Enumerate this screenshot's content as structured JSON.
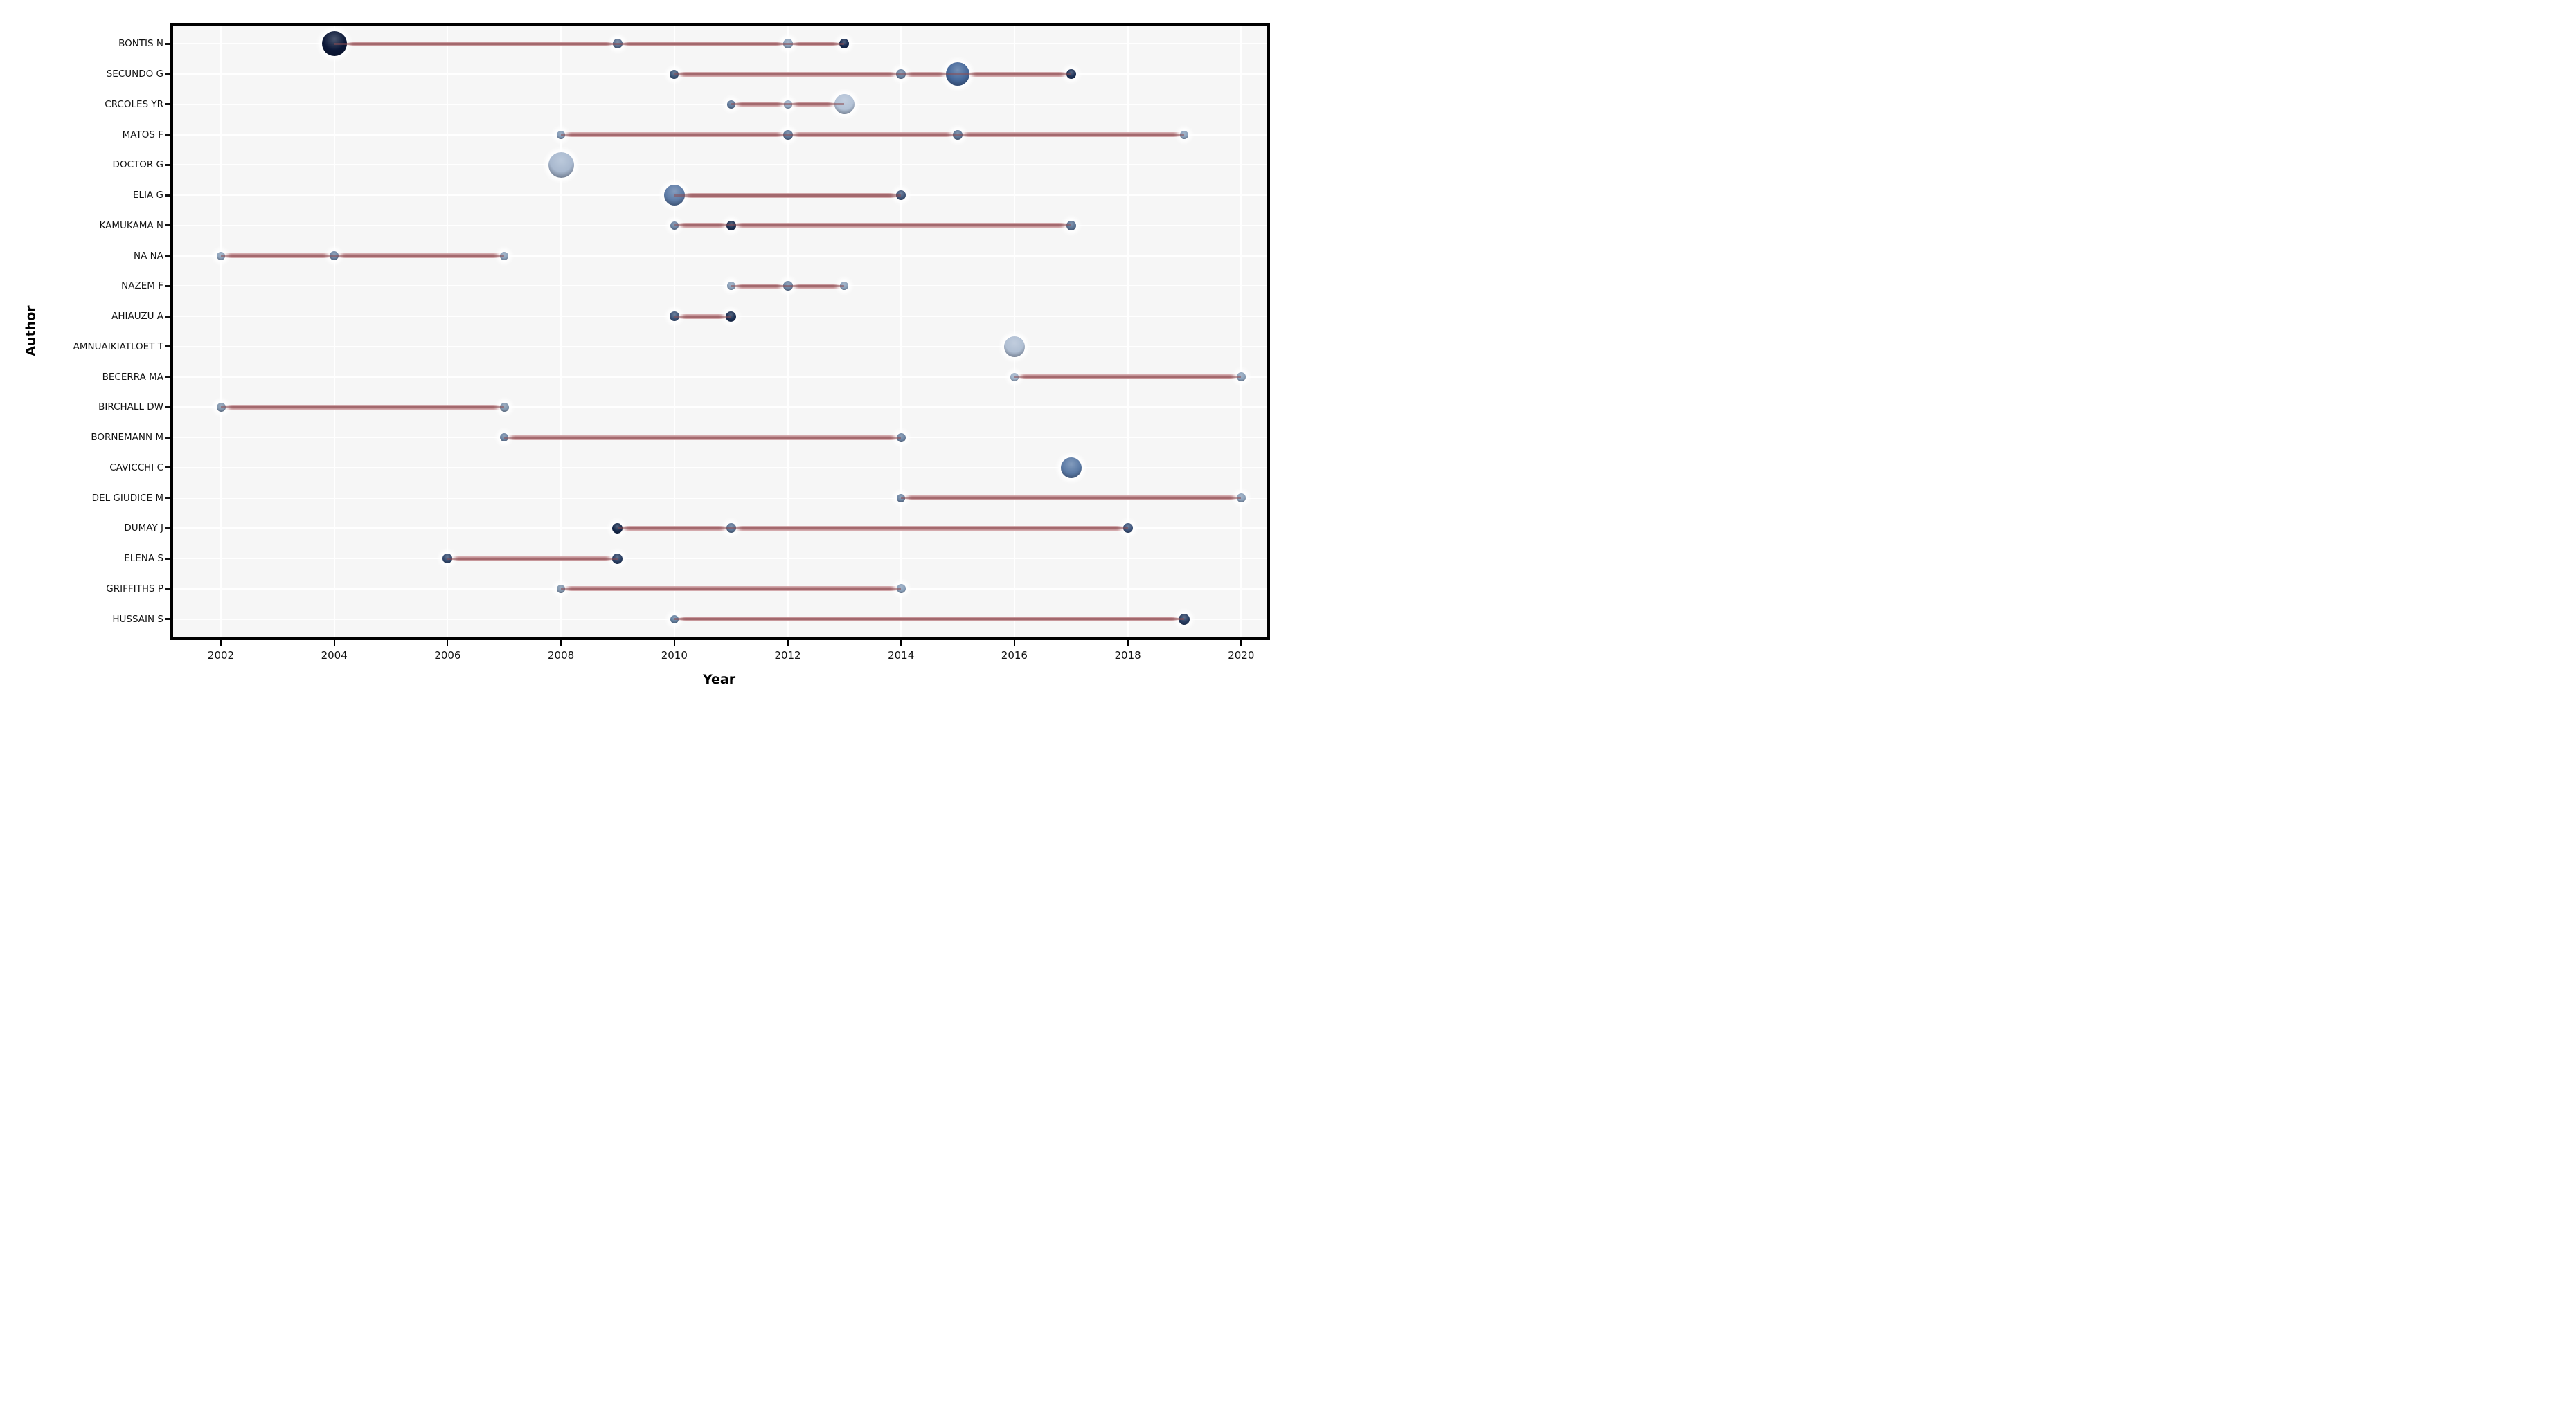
{
  "chart_data": {
    "type": "scatter",
    "variant": "authors-production-over-time-dot-timeline",
    "title": "",
    "xlabel": "Year",
    "ylabel": "Author",
    "x_ticks": [
      2002,
      2004,
      2006,
      2008,
      2010,
      2012,
      2014,
      2016,
      2018,
      2020
    ],
    "x_range": [
      2001.15,
      2020.5
    ],
    "grid": true,
    "legend_position": "none",
    "colors": {
      "panel_background": "#f6f6f6",
      "panel_border": "#000000",
      "gridline": "#ffffff",
      "line_ribbon": "#c08a8e",
      "line_ribbon_edge": "#d4a7aa",
      "line_core": "#9e5f63",
      "tick_text": "#111111",
      "point_dark": "#0c1838",
      "point_light": "#b3c2d6"
    },
    "authors": [
      {
        "name": "BONTIS N",
        "line": [
          2004,
          2013
        ],
        "points": [
          {
            "year": 2004,
            "r": 18,
            "color": "#0c1838"
          },
          {
            "year": 2009,
            "r": 7,
            "color": "#5a6f8e"
          },
          {
            "year": 2012,
            "r": 7,
            "color": "#8ba0b9"
          },
          {
            "year": 2013,
            "r": 7,
            "color": "#16294f"
          }
        ]
      },
      {
        "name": "SECUNDO G",
        "line": [
          2010,
          2017
        ],
        "points": [
          {
            "year": 2010,
            "r": 6.5,
            "color": "#3d5678"
          },
          {
            "year": 2014,
            "r": 7,
            "color": "#6d84a2"
          },
          {
            "year": 2015,
            "r": 17,
            "color": "#46689a"
          },
          {
            "year": 2017,
            "r": 7,
            "color": "#1d3156"
          }
        ]
      },
      {
        "name": "CRCOLES YR",
        "line": [
          2011,
          2013
        ],
        "points": [
          {
            "year": 2011,
            "r": 6,
            "color": "#5f7899"
          },
          {
            "year": 2012,
            "r": 6,
            "color": "#94a9c2"
          },
          {
            "year": 2013,
            "r": 14.5,
            "color": "#b3c2d6"
          }
        ]
      },
      {
        "name": "MATOS F",
        "line": [
          2008,
          2019
        ],
        "points": [
          {
            "year": 2008,
            "r": 6,
            "color": "#8198b4"
          },
          {
            "year": 2012,
            "r": 7,
            "color": "#5c7494"
          },
          {
            "year": 2015,
            "r": 7,
            "color": "#5c7494"
          },
          {
            "year": 2019,
            "r": 6,
            "color": "#8aa0ba"
          }
        ]
      },
      {
        "name": "DOCTOR G",
        "line": null,
        "points": [
          {
            "year": 2008,
            "r": 18.5,
            "color": "#a9b9cf"
          }
        ]
      },
      {
        "name": "ELIA G",
        "line": [
          2010,
          2014
        ],
        "points": [
          {
            "year": 2010,
            "r": 15,
            "color": "#5d7ba6"
          },
          {
            "year": 2014,
            "r": 7,
            "color": "#41577b"
          }
        ]
      },
      {
        "name": "KAMUKAMA N",
        "line": [
          2010,
          2017
        ],
        "points": [
          {
            "year": 2010,
            "r": 6,
            "color": "#6b82a1"
          },
          {
            "year": 2011,
            "r": 7,
            "color": "#1c2f52"
          },
          {
            "year": 2017,
            "r": 7,
            "color": "#5c7494"
          }
        ]
      },
      {
        "name": "NA NA",
        "line": [
          2002,
          2007
        ],
        "points": [
          {
            "year": 2002,
            "r": 6,
            "color": "#8ba0b9"
          },
          {
            "year": 2004,
            "r": 6.5,
            "color": "#6d84a2"
          },
          {
            "year": 2007,
            "r": 6,
            "color": "#8ba0b9"
          }
        ]
      },
      {
        "name": "NAZEM F",
        "line": [
          2011,
          2013
        ],
        "points": [
          {
            "year": 2011,
            "r": 6,
            "color": "#8ba0b9"
          },
          {
            "year": 2012,
            "r": 7,
            "color": "#6d84a2"
          },
          {
            "year": 2013,
            "r": 6,
            "color": "#8ba0b9"
          }
        ]
      },
      {
        "name": "AHIAUZU A",
        "line": [
          2010,
          2011
        ],
        "points": [
          {
            "year": 2010,
            "r": 7,
            "color": "#3c5377"
          },
          {
            "year": 2011,
            "r": 7.5,
            "color": "#1c2f52"
          }
        ]
      },
      {
        "name": "AMNUAIKIATLOET T",
        "line": null,
        "points": [
          {
            "year": 2016,
            "r": 15,
            "color": "#b0bfd3"
          }
        ]
      },
      {
        "name": "BECERRA MA",
        "line": [
          2016,
          2020
        ],
        "points": [
          {
            "year": 2016,
            "r": 6,
            "color": "#9db0c6"
          },
          {
            "year": 2020,
            "r": 6.5,
            "color": "#8ba0b9"
          }
        ]
      },
      {
        "name": "BIRCHALL DW",
        "line": [
          2002,
          2007
        ],
        "points": [
          {
            "year": 2002,
            "r": 6.5,
            "color": "#8296ad"
          },
          {
            "year": 2007,
            "r": 6.5,
            "color": "#8296ad"
          }
        ]
      },
      {
        "name": "BORNEMANN M",
        "line": [
          2007,
          2014
        ],
        "points": [
          {
            "year": 2007,
            "r": 6,
            "color": "#6d84a2"
          },
          {
            "year": 2014,
            "r": 6.5,
            "color": "#6d84a2"
          }
        ]
      },
      {
        "name": "CAVICCHI C",
        "line": null,
        "points": [
          {
            "year": 2017,
            "r": 15,
            "color": "#5b7aa5"
          }
        ]
      },
      {
        "name": "DEL GIUDICE M",
        "line": [
          2014,
          2020
        ],
        "points": [
          {
            "year": 2014,
            "r": 6,
            "color": "#6d84a2"
          },
          {
            "year": 2020,
            "r": 6.5,
            "color": "#8ba0b9"
          }
        ]
      },
      {
        "name": "DUMAY J",
        "line": [
          2009,
          2018
        ],
        "points": [
          {
            "year": 2009,
            "r": 7.5,
            "color": "#15284a"
          },
          {
            "year": 2011,
            "r": 7,
            "color": "#5c7494"
          },
          {
            "year": 2018,
            "r": 7,
            "color": "#3c537a"
          }
        ]
      },
      {
        "name": "ELENA S",
        "line": [
          2006,
          2009
        ],
        "points": [
          {
            "year": 2006,
            "r": 7,
            "color": "#33496e"
          },
          {
            "year": 2009,
            "r": 7.5,
            "color": "#2a3f63"
          }
        ]
      },
      {
        "name": "GRIFFITHS P",
        "line": [
          2008,
          2014
        ],
        "points": [
          {
            "year": 2008,
            "r": 6,
            "color": "#8296ad"
          },
          {
            "year": 2014,
            "r": 6.5,
            "color": "#8aa0ba"
          }
        ]
      },
      {
        "name": "HUSSAIN S",
        "line": [
          2010,
          2019
        ],
        "points": [
          {
            "year": 2010,
            "r": 6,
            "color": "#64809f"
          },
          {
            "year": 2019,
            "r": 8,
            "color": "#273c60"
          }
        ]
      }
    ]
  }
}
